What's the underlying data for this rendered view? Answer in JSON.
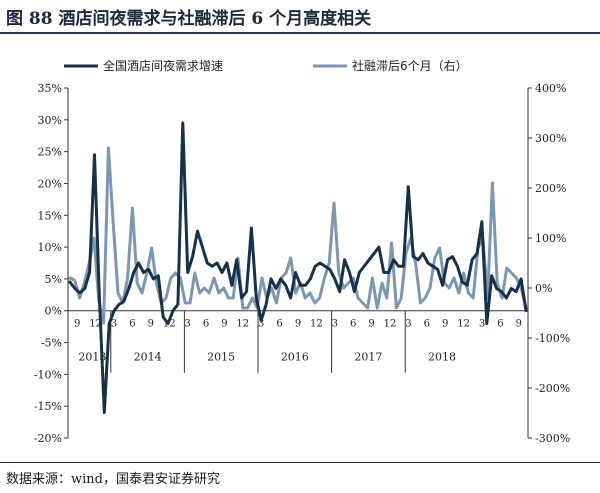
{
  "header": {
    "title": "图 88  酒店间夜需求与社融滞后 6 个月高度相关"
  },
  "footer": {
    "source": "数据来源：wind，国泰君安证券研究"
  },
  "colors": {
    "series1": "#16324a",
    "series2": "#7b97b2",
    "axis": "#333333",
    "rule": "#23364b"
  },
  "chart_data": {
    "type": "line",
    "legend_position": "top",
    "grid": false,
    "x_month_labels": [
      "9",
      "12",
      "3",
      "6",
      "9",
      "12",
      "3",
      "6",
      "9",
      "12",
      "3",
      "6",
      "9",
      "12",
      "3",
      "6",
      "9",
      "12",
      "3",
      "6",
      "9",
      "12",
      "3",
      "6",
      "9"
    ],
    "year_labels": [
      "2013",
      "2014",
      "2015",
      "2016",
      "2017",
      "2018"
    ],
    "left_axis": {
      "ylim": [
        -20,
        35
      ],
      "ticks": [
        "-20%",
        "-15%",
        "-10%",
        "-5%",
        "0%",
        "5%",
        "10%",
        "15%",
        "20%",
        "25%",
        "30%",
        "35%"
      ]
    },
    "right_axis": {
      "ylim": [
        -300,
        400
      ],
      "ticks": [
        "-300%",
        "-200%",
        "-100%",
        "0%",
        "100%",
        "200%",
        "300%",
        "400%"
      ]
    },
    "series": [
      {
        "name": "全国酒店间夜需求增速",
        "axis": "left",
        "values": [
          4.5,
          3.5,
          2.8,
          3.5,
          6,
          24.5,
          2,
          -16,
          -2,
          0,
          1,
          1.5,
          3.5,
          6,
          7.5,
          6,
          6.5,
          5,
          5.5,
          -1,
          -2,
          0,
          1,
          29.5,
          6,
          8.5,
          12.5,
          10,
          7.5,
          7,
          7.5,
          6,
          7.5,
          4,
          8,
          2,
          3,
          13,
          2,
          -1.5,
          1,
          5,
          3.5,
          5,
          4,
          2,
          6,
          4,
          4,
          5,
          7,
          7.5,
          7,
          6.5,
          5,
          3,
          8,
          6,
          3,
          6,
          7,
          8,
          9,
          10,
          6,
          6,
          8,
          7,
          7,
          19.5,
          8.5,
          8,
          9,
          7.5,
          7,
          6.5,
          4,
          8,
          8.5,
          7,
          4.5,
          4,
          8,
          9,
          14,
          -2,
          5.5,
          3.5,
          3,
          2,
          3.5,
          3,
          5,
          0
        ]
      },
      {
        "name": "社融滞后6个月（右）",
        "axis": "right",
        "values": [
          20,
          15,
          -20,
          10,
          50,
          100,
          -25,
          -70,
          280,
          130,
          -10,
          -30,
          20,
          160,
          10,
          -10,
          30,
          80,
          10,
          -30,
          -20,
          20,
          30,
          20,
          -30,
          -30,
          30,
          -10,
          0,
          -10,
          20,
          -10,
          0,
          -20,
          -20,
          60,
          -40,
          -40,
          -20,
          -40,
          20,
          -20,
          0,
          -30,
          20,
          30,
          60,
          -10,
          10,
          -20,
          -10,
          -30,
          -20,
          20,
          50,
          170,
          30,
          0,
          10,
          20,
          -20,
          -30,
          -40,
          20,
          -40,
          10,
          -20,
          90,
          -40,
          -20,
          70,
          100,
          50,
          -30,
          -20,
          0,
          60,
          80,
          10,
          0,
          20,
          -10,
          30,
          -10,
          -20,
          80,
          100,
          -20,
          210,
          10,
          -20,
          40,
          30,
          20,
          0,
          -40
        ]
      }
    ]
  }
}
